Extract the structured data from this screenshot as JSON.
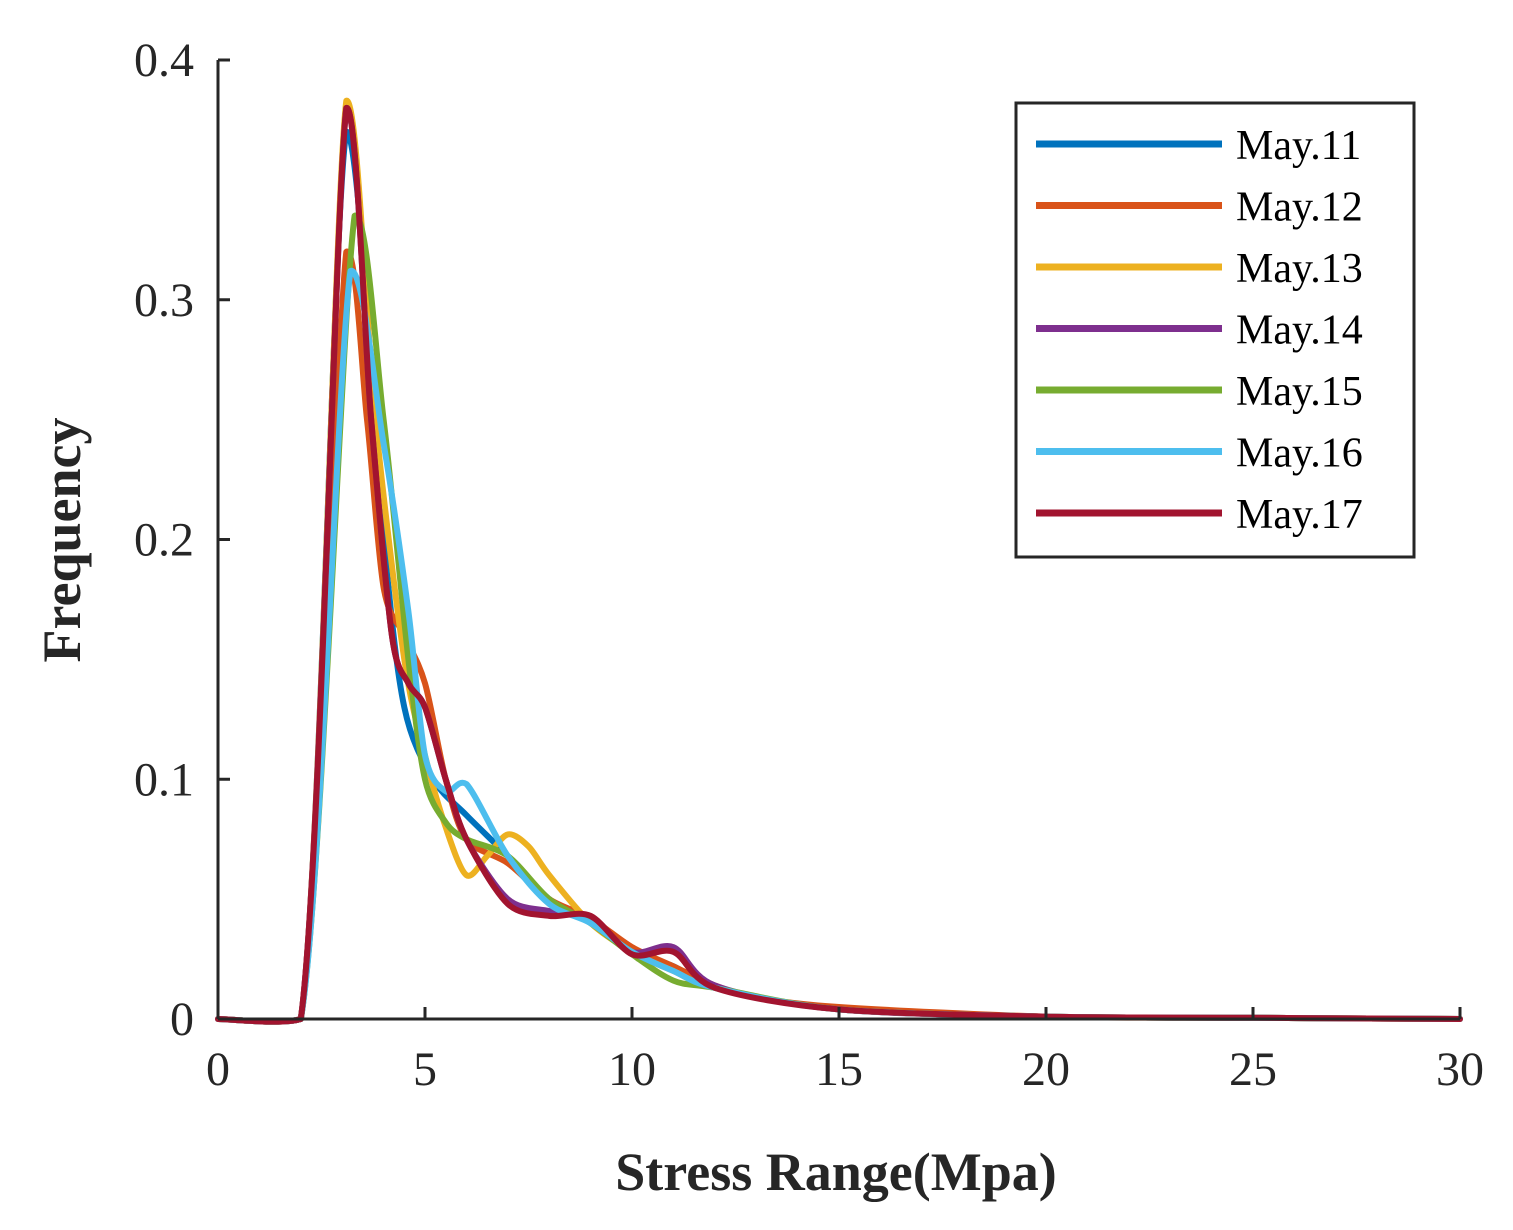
{
  "chart_data": {
    "type": "line",
    "title": "",
    "xlabel": "Stress Range(Mpa)",
    "ylabel": "Frequency",
    "xlim": [
      0,
      30
    ],
    "ylim": [
      0,
      0.4
    ],
    "xticks": [
      0,
      5,
      10,
      15,
      20,
      25,
      30
    ],
    "yticks": [
      0,
      0.1,
      0.2,
      0.3,
      0.4
    ],
    "xtick_labels": [
      "0",
      "5",
      "10",
      "15",
      "20",
      "25",
      "30"
    ],
    "ytick_labels": [
      "0",
      "0.1",
      "0.2",
      "0.3",
      "0.4"
    ],
    "grid": false,
    "legend_position": "top-right",
    "series": [
      {
        "name": "May.11",
        "color": "#0072BD",
        "x": [
          0,
          2,
          3.1,
          4,
          4.5,
          5.2,
          6,
          7,
          8,
          9,
          10,
          11,
          12,
          15,
          20,
          25,
          30
        ],
        "y": [
          0,
          0,
          0.37,
          0.2,
          0.13,
          0.1,
          0.085,
          0.068,
          0.05,
          0.04,
          0.028,
          0.022,
          0.013,
          0.004,
          0.001,
          0.0005,
          0
        ]
      },
      {
        "name": "May.12",
        "color": "#D95319",
        "x": [
          0,
          2,
          3.1,
          3.6,
          4,
          4.5,
          5,
          5.5,
          6,
          7,
          8,
          9,
          10,
          11,
          12,
          13,
          15,
          20,
          25,
          30
        ],
        "y": [
          0,
          0,
          0.32,
          0.25,
          0.18,
          0.16,
          0.14,
          0.1,
          0.075,
          0.065,
          0.05,
          0.042,
          0.03,
          0.022,
          0.014,
          0.009,
          0.005,
          0.001,
          0.0005,
          0
        ]
      },
      {
        "name": "May.13",
        "color": "#EDB120",
        "x": [
          0,
          2,
          3.1,
          3.8,
          4.5,
          5,
          5.5,
          6,
          6.5,
          7,
          7.5,
          8,
          9,
          10,
          11,
          12,
          15,
          20,
          25,
          30
        ],
        "y": [
          0,
          0,
          0.383,
          0.25,
          0.15,
          0.11,
          0.08,
          0.06,
          0.068,
          0.077,
          0.072,
          0.06,
          0.04,
          0.028,
          0.02,
          0.013,
          0.004,
          0.001,
          0.0005,
          0
        ]
      },
      {
        "name": "May.14",
        "color": "#7E2F8E",
        "x": [
          0,
          2,
          3.1,
          3.7,
          4.2,
          4.6,
          5,
          5.5,
          6,
          7,
          8,
          9,
          10,
          11,
          12,
          15,
          20,
          25,
          30
        ],
        "y": [
          0,
          0,
          0.38,
          0.25,
          0.16,
          0.14,
          0.13,
          0.1,
          0.075,
          0.05,
          0.045,
          0.042,
          0.028,
          0.03,
          0.014,
          0.004,
          0.001,
          0.0005,
          0
        ]
      },
      {
        "name": "May.15",
        "color": "#77AC30",
        "x": [
          0,
          2,
          3.3,
          4,
          4.6,
          5,
          5.5,
          6,
          7,
          8,
          9,
          10,
          11,
          12,
          15,
          20,
          25,
          30
        ],
        "y": [
          0,
          0,
          0.335,
          0.25,
          0.15,
          0.1,
          0.082,
          0.075,
          0.068,
          0.05,
          0.04,
          0.027,
          0.016,
          0.013,
          0.004,
          0.001,
          0.0005,
          0
        ]
      },
      {
        "name": "May.16",
        "color": "#4DBEEE",
        "x": [
          0,
          2,
          3.2,
          4,
          4.6,
          5,
          5.5,
          6,
          7,
          8,
          9,
          10,
          11,
          12,
          15,
          20,
          25,
          30
        ],
        "y": [
          0,
          0,
          0.312,
          0.24,
          0.17,
          0.11,
          0.095,
          0.098,
          0.068,
          0.048,
          0.04,
          0.028,
          0.02,
          0.013,
          0.004,
          0.001,
          0.0005,
          0
        ]
      },
      {
        "name": "May.17",
        "color": "#A2142F",
        "x": [
          0,
          2,
          3.1,
          3.7,
          4.2,
          4.6,
          5,
          5.5,
          6,
          7,
          8,
          9,
          10,
          11,
          12,
          15,
          20,
          25,
          30
        ],
        "y": [
          0,
          0,
          0.38,
          0.25,
          0.16,
          0.14,
          0.13,
          0.1,
          0.075,
          0.048,
          0.043,
          0.043,
          0.027,
          0.028,
          0.013,
          0.004,
          0.001,
          0.0005,
          0
        ]
      }
    ]
  }
}
